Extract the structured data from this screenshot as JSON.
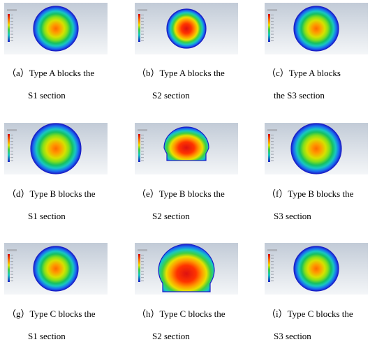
{
  "colors": {
    "background_gradient": [
      "#c2cbd7",
      "#f4f6f8"
    ],
    "contour_stops": [
      "#dd1111",
      "#ff5500",
      "#ff9a00",
      "#e8e000",
      "#86e01a",
      "#16c060",
      "#18c8c0",
      "#1a6ff0",
      "#1a1fc8"
    ]
  },
  "panels": [
    {
      "id": "a",
      "shape": "circle",
      "intensity": "medium",
      "caption_line1": "（a）Type A blocks the",
      "caption_line2": "S1 section"
    },
    {
      "id": "b",
      "shape": "circle-small",
      "intensity": "high",
      "caption_line1": "（b）Type A blocks the",
      "caption_line2": "S2 section"
    },
    {
      "id": "c",
      "shape": "circle",
      "intensity": "medium",
      "caption_line1": "（c）Type  A  blocks",
      "caption_line2": "the S3 section"
    },
    {
      "id": "d",
      "shape": "circle-large",
      "intensity": "medium",
      "caption_line1": "（d）Type B blocks the",
      "caption_line2": "S1 section"
    },
    {
      "id": "e",
      "shape": "dome-small",
      "intensity": "high",
      "caption_line1": "（e）Type B blocks the",
      "caption_line2": "S2 section"
    },
    {
      "id": "f",
      "shape": "circle-large",
      "intensity": "medium",
      "caption_line1": "（f）Type B blocks the",
      "caption_line2": "S3 section"
    },
    {
      "id": "g",
      "shape": "circle",
      "intensity": "medium",
      "caption_line1": "（g）Type C blocks the",
      "caption_line2": "S1 section"
    },
    {
      "id": "h",
      "shape": "dome-large",
      "intensity": "high",
      "caption_line1": "（h）Type C blocks the",
      "caption_line2": "S2 section"
    },
    {
      "id": "i",
      "shape": "circle",
      "intensity": "medium",
      "caption_line1": "（i）Type C blocks the",
      "caption_line2": "S3 section"
    }
  ]
}
